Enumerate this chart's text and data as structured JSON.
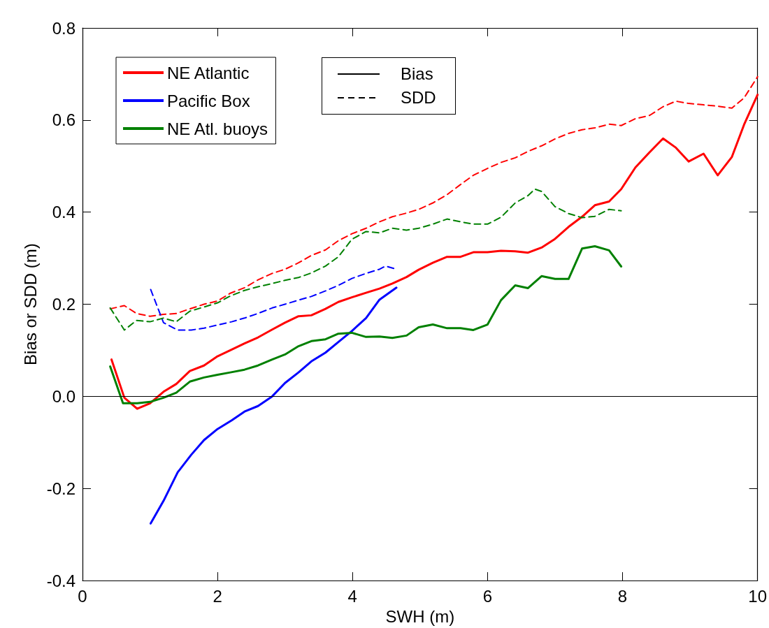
{
  "chart_data": {
    "type": "line",
    "xlabel": "SWH (m)",
    "ylabel": "Bias or SDD (m)",
    "xlim": [
      0,
      10
    ],
    "xticks": [
      0,
      2,
      4,
      6,
      8,
      10
    ],
    "ylim": [
      -0.4,
      0.8
    ],
    "yticks": [
      {
        "value": -0.4,
        "label": "-0.4"
      },
      {
        "value": -0.2,
        "label": "-0.2"
      },
      {
        "value": 0,
        "label": "0.0"
      },
      {
        "value": 0.2,
        "label": "0.2"
      },
      {
        "value": 0.4,
        "label": "0.4"
      },
      {
        "value": 0.6,
        "label": "0.6"
      },
      {
        "value": 0.8,
        "label": "0.8"
      }
    ],
    "grid": false,
    "legend": "top left",
    "marker": "none",
    "annotations": [
      "Bias",
      "SDD"
    ],
    "ref_lines": [
      {
        "axis": "y",
        "value": 0,
        "color": "#000000",
        "line_style": "solid"
      }
    ],
    "series": [
      {
        "name": "NE Atlantic",
        "color": "#ff0000",
        "line_style": "solid",
        "x": [
          0.43,
          0.62,
          0.81,
          1.0,
          1.2,
          1.39,
          1.59,
          1.8,
          2.0,
          2.19,
          2.4,
          2.6,
          2.81,
          3.0,
          3.2,
          3.39,
          3.6,
          3.79,
          3.99,
          4.2,
          4.4,
          4.59,
          4.8,
          4.98,
          5.19,
          5.4,
          5.6,
          5.79,
          6.0,
          6.2,
          6.41,
          6.6,
          6.8,
          7.0,
          7.2,
          7.4,
          7.59,
          7.8,
          7.98,
          8.19,
          8.4,
          8.6,
          8.79,
          8.98,
          9.2,
          9.41,
          9.62,
          9.8,
          10
        ],
        "values": [
          0.08,
          -0.003,
          -0.027,
          -0.015,
          0.01,
          0.027,
          0.055,
          0.067,
          0.087,
          0.1,
          0.115,
          0.128,
          0.145,
          0.16,
          0.174,
          0.176,
          0.19,
          0.205,
          0.215,
          0.225,
          0.234,
          0.245,
          0.259,
          0.275,
          0.29,
          0.303,
          0.303,
          0.313,
          0.313,
          0.316,
          0.315,
          0.312,
          0.323,
          0.342,
          0.368,
          0.39,
          0.415,
          0.423,
          0.45,
          0.497,
          0.53,
          0.56,
          0.54,
          0.51,
          0.527,
          0.48,
          0.52,
          0.59,
          0.655
        ]
      },
      {
        "name": "Pacific Box",
        "color": "#0000ff",
        "line_style": "solid",
        "x": [
          1.01,
          1.2,
          1.41,
          1.61,
          1.8,
          2.0,
          2.21,
          2.4,
          2.6,
          2.81,
          3.0,
          3.2,
          3.39,
          3.6,
          3.79,
          3.99,
          4.2,
          4.4,
          4.65
        ],
        "values": [
          -0.276,
          -0.227,
          -0.165,
          -0.127,
          -0.095,
          -0.071,
          -0.052,
          -0.033,
          -0.021,
          0.0,
          0.029,
          0.052,
          0.076,
          0.095,
          0.118,
          0.142,
          0.17,
          0.21,
          0.236
        ]
      },
      {
        "name": "NE Atl. buoys",
        "color": "#008000",
        "line_style": "solid",
        "x": [
          0.41,
          0.6,
          0.81,
          1.0,
          1.2,
          1.39,
          1.59,
          1.8,
          2.0,
          2.19,
          2.4,
          2.6,
          2.81,
          3.0,
          3.2,
          3.39,
          3.6,
          3.79,
          3.99,
          4.2,
          4.4,
          4.59,
          4.8,
          4.98,
          5.19,
          5.4,
          5.6,
          5.79,
          6.0,
          6.2,
          6.41,
          6.6,
          6.8,
          7.0,
          7.2,
          7.4,
          7.59,
          7.8,
          7.98
        ],
        "values": [
          0.065,
          -0.015,
          -0.015,
          -0.012,
          -0.003,
          0.008,
          0.032,
          0.041,
          0.047,
          0.052,
          0.058,
          0.067,
          0.08,
          0.091,
          0.109,
          0.12,
          0.124,
          0.136,
          0.138,
          0.129,
          0.13,
          0.127,
          0.132,
          0.15,
          0.156,
          0.148,
          0.148,
          0.144,
          0.156,
          0.209,
          0.241,
          0.235,
          0.261,
          0.255,
          0.255,
          0.321,
          0.326,
          0.317,
          0.282
        ]
      },
      {
        "color": "#ff0000",
        "line_style": "dashed",
        "x": [
          0.41,
          0.62,
          0.8,
          1.0,
          1.2,
          1.39,
          1.59,
          1.8,
          2.0,
          2.19,
          2.4,
          2.6,
          2.81,
          3.0,
          3.2,
          3.39,
          3.6,
          3.79,
          3.99,
          4.2,
          4.4,
          4.59,
          4.8,
          4.98,
          5.19,
          5.4,
          5.6,
          5.79,
          6.0,
          6.2,
          6.41,
          6.6,
          6.8,
          7.0,
          7.2,
          7.4,
          7.59,
          7.8,
          7.98,
          8.19,
          8.4,
          8.6,
          8.79,
          8.98,
          9.2,
          9.41,
          9.62,
          9.8,
          10
        ],
        "values": [
          0.19,
          0.197,
          0.18,
          0.174,
          0.178,
          0.18,
          0.19,
          0.2,
          0.207,
          0.224,
          0.236,
          0.253,
          0.267,
          0.276,
          0.29,
          0.306,
          0.318,
          0.338,
          0.353,
          0.365,
          0.379,
          0.39,
          0.398,
          0.406,
          0.42,
          0.438,
          0.46,
          0.48,
          0.495,
          0.508,
          0.518,
          0.532,
          0.544,
          0.559,
          0.571,
          0.579,
          0.583,
          0.591,
          0.588,
          0.603,
          0.61,
          0.629,
          0.641,
          0.636,
          0.633,
          0.63,
          0.626,
          0.648,
          0.694
        ]
      },
      {
        "color": "#0000ff",
        "line_style": "dashed",
        "x": [
          1.01,
          1.2,
          1.41,
          1.61,
          1.8,
          2.0,
          2.21,
          2.4,
          2.6,
          2.81,
          3.0,
          3.2,
          3.39,
          3.6,
          3.79,
          3.99,
          4.2,
          4.4,
          4.49,
          4.65
        ],
        "values": [
          0.232,
          0.16,
          0.144,
          0.144,
          0.148,
          0.155,
          0.162,
          0.17,
          0.18,
          0.192,
          0.2,
          0.209,
          0.217,
          0.229,
          0.241,
          0.256,
          0.267,
          0.276,
          0.283,
          0.276
        ]
      },
      {
        "color": "#008000",
        "line_style": "dashed",
        "x": [
          0.41,
          0.62,
          0.8,
          1.0,
          1.2,
          1.39,
          1.59,
          1.8,
          2.0,
          2.19,
          2.4,
          2.6,
          2.81,
          3.0,
          3.2,
          3.39,
          3.6,
          3.79,
          3.99,
          4.2,
          4.4,
          4.59,
          4.8,
          4.98,
          5.19,
          5.4,
          5.6,
          5.79,
          6.0,
          6.2,
          6.41,
          6.6,
          6.7,
          6.8,
          7.0,
          7.2,
          7.4,
          7.59,
          7.8,
          7.98
        ],
        "values": [
          0.192,
          0.144,
          0.165,
          0.162,
          0.17,
          0.162,
          0.185,
          0.194,
          0.203,
          0.218,
          0.23,
          0.238,
          0.245,
          0.252,
          0.258,
          0.268,
          0.283,
          0.303,
          0.341,
          0.358,
          0.355,
          0.365,
          0.361,
          0.365,
          0.374,
          0.385,
          0.379,
          0.374,
          0.374,
          0.389,
          0.42,
          0.436,
          0.45,
          0.445,
          0.412,
          0.397,
          0.388,
          0.391,
          0.406,
          0.403
        ]
      }
    ]
  }
}
